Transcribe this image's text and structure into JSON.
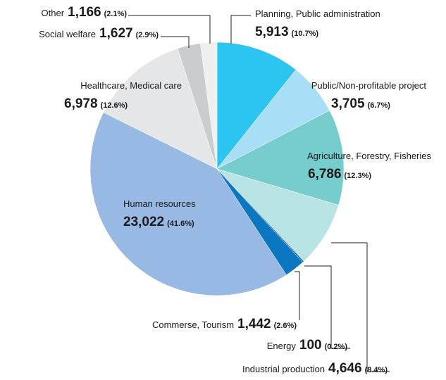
{
  "chart_data": {
    "type": "pie",
    "categories": [
      "Planning, Public administration",
      "Public/Non-profitable project",
      "Agriculture, Forestry, Fisheries",
      "Industrial production",
      "Energy",
      "Commerse, Tourism",
      "Human resources",
      "Healthcare, Medical care",
      "Social welfare",
      "Other"
    ],
    "values": [
      5913,
      3705,
      6786,
      4646,
      100,
      1442,
      23022,
      6978,
      1627,
      1166
    ],
    "value_labels": [
      "5,913",
      "3,705",
      "6,786",
      "4,646",
      "100",
      "1,442",
      "23,022",
      "6,978",
      "1,627",
      "1,166"
    ],
    "percent_labels": [
      "(10.7%)",
      "(6.7%)",
      "(12.3%)",
      "(8.4%)",
      "(0.2%)",
      "(2.6%)",
      "(41.6%)",
      "(12.6%)",
      "(2.9%)",
      "(2.1%)"
    ],
    "colors": [
      "#2cc4f1",
      "#a9dff6",
      "#77cdcd",
      "#b9e4e6",
      "#1565a8",
      "#0a77c0",
      "#97b9e3",
      "#e5e6e7",
      "#cbcccd",
      "#efeff0"
    ]
  }
}
